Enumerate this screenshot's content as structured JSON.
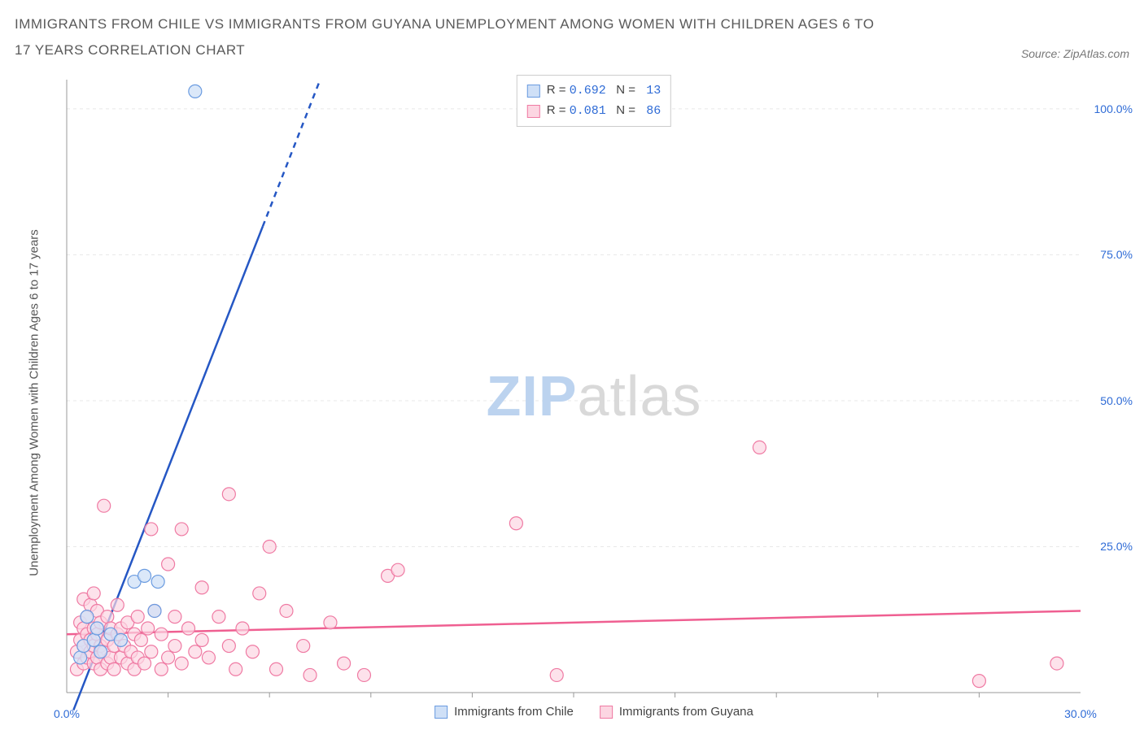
{
  "title": "IMMIGRANTS FROM CHILE VS IMMIGRANTS FROM GUYANA UNEMPLOYMENT AMONG WOMEN WITH CHILDREN AGES 6 TO 17 YEARS CORRELATION CHART",
  "source_label": "Source: ZipAtlas.com",
  "y_axis_label": "Unemployment Among Women with Children Ages 6 to 17 years",
  "watermark": {
    "left": "ZIP",
    "right": "atlas"
  },
  "chart": {
    "type": "scatter",
    "background_color": "#ffffff",
    "grid_color": "#e8e8e8",
    "axis_line_color": "#999999",
    "xlim": [
      0,
      30
    ],
    "ylim": [
      0,
      105
    ],
    "x_tick_color": "#2e6bd6",
    "y_tick_color": "#2e6bd6",
    "x_ticks": [
      {
        "v": 0,
        "label": "0.0%"
      },
      {
        "v": 30,
        "label": "30.0%"
      }
    ],
    "x_minor_ticks": [
      3,
      6,
      9,
      12,
      15,
      18,
      21,
      24,
      27
    ],
    "y_ticks": [
      {
        "v": 25,
        "label": "25.0%"
      },
      {
        "v": 50,
        "label": "50.0%"
      },
      {
        "v": 75,
        "label": "75.0%"
      },
      {
        "v": 100,
        "label": "100.0%"
      }
    ],
    "series": [
      {
        "id": "chile",
        "name": "Immigrants from Chile",
        "marker_fill": "#cfe0f7",
        "marker_stroke": "#6a9be0",
        "marker_opacity": 0.75,
        "marker_radius": 8,
        "line_color": "#2557c4",
        "line_width": 2.5,
        "line_dash_after_x": 5.8,
        "trend": {
          "x1": 0.2,
          "y1": -3,
          "x2": 7.5,
          "y2": 105
        },
        "R": "0.692",
        "N": "13",
        "points": [
          {
            "x": 0.4,
            "y": 6
          },
          {
            "x": 0.5,
            "y": 8
          },
          {
            "x": 0.6,
            "y": 13
          },
          {
            "x": 0.8,
            "y": 9
          },
          {
            "x": 0.9,
            "y": 11
          },
          {
            "x": 1.0,
            "y": 7
          },
          {
            "x": 1.3,
            "y": 10
          },
          {
            "x": 1.6,
            "y": 9
          },
          {
            "x": 2.0,
            "y": 19
          },
          {
            "x": 2.3,
            "y": 20
          },
          {
            "x": 2.6,
            "y": 14
          },
          {
            "x": 2.7,
            "y": 19
          },
          {
            "x": 3.8,
            "y": 103
          }
        ]
      },
      {
        "id": "guyana",
        "name": "Immigrants from Guyana",
        "marker_fill": "#fcd6e2",
        "marker_stroke": "#ef7aa3",
        "marker_opacity": 0.7,
        "marker_radius": 8,
        "line_color": "#ef5f91",
        "line_width": 2.5,
        "trend": {
          "x1": 0,
          "y1": 10,
          "x2": 30,
          "y2": 14
        },
        "R": "0.081",
        "N": "86",
        "points": [
          {
            "x": 0.3,
            "y": 4
          },
          {
            "x": 0.3,
            "y": 7
          },
          {
            "x": 0.4,
            "y": 9
          },
          {
            "x": 0.4,
            "y": 12
          },
          {
            "x": 0.5,
            "y": 5
          },
          {
            "x": 0.5,
            "y": 8
          },
          {
            "x": 0.5,
            "y": 11
          },
          {
            "x": 0.5,
            "y": 16
          },
          {
            "x": 0.6,
            "y": 6
          },
          {
            "x": 0.6,
            "y": 10
          },
          {
            "x": 0.6,
            "y": 13
          },
          {
            "x": 0.7,
            "y": 7
          },
          {
            "x": 0.7,
            "y": 9
          },
          {
            "x": 0.7,
            "y": 15
          },
          {
            "x": 0.8,
            "y": 5
          },
          {
            "x": 0.8,
            "y": 8
          },
          {
            "x": 0.8,
            "y": 11
          },
          {
            "x": 0.8,
            "y": 17
          },
          {
            "x": 0.9,
            "y": 6
          },
          {
            "x": 0.9,
            "y": 10
          },
          {
            "x": 0.9,
            "y": 14
          },
          {
            "x": 1.0,
            "y": 4
          },
          {
            "x": 1.0,
            "y": 8
          },
          {
            "x": 1.0,
            "y": 12
          },
          {
            "x": 1.1,
            "y": 7
          },
          {
            "x": 1.1,
            "y": 32
          },
          {
            "x": 1.2,
            "y": 5
          },
          {
            "x": 1.2,
            "y": 9
          },
          {
            "x": 1.2,
            "y": 13
          },
          {
            "x": 1.3,
            "y": 6
          },
          {
            "x": 1.3,
            "y": 11
          },
          {
            "x": 1.4,
            "y": 4
          },
          {
            "x": 1.4,
            "y": 8
          },
          {
            "x": 1.5,
            "y": 10
          },
          {
            "x": 1.5,
            "y": 15
          },
          {
            "x": 1.6,
            "y": 6
          },
          {
            "x": 1.6,
            "y": 11
          },
          {
            "x": 1.7,
            "y": 8
          },
          {
            "x": 1.8,
            "y": 5
          },
          {
            "x": 1.8,
            "y": 12
          },
          {
            "x": 1.9,
            "y": 7
          },
          {
            "x": 2.0,
            "y": 4
          },
          {
            "x": 2.0,
            "y": 10
          },
          {
            "x": 2.1,
            "y": 6
          },
          {
            "x": 2.1,
            "y": 13
          },
          {
            "x": 2.2,
            "y": 9
          },
          {
            "x": 2.3,
            "y": 5
          },
          {
            "x": 2.4,
            "y": 11
          },
          {
            "x": 2.5,
            "y": 7
          },
          {
            "x": 2.5,
            "y": 28
          },
          {
            "x": 2.6,
            "y": 14
          },
          {
            "x": 2.8,
            "y": 4
          },
          {
            "x": 2.8,
            "y": 10
          },
          {
            "x": 3.0,
            "y": 6
          },
          {
            "x": 3.0,
            "y": 22
          },
          {
            "x": 3.2,
            "y": 8
          },
          {
            "x": 3.2,
            "y": 13
          },
          {
            "x": 3.4,
            "y": 5
          },
          {
            "x": 3.4,
            "y": 28
          },
          {
            "x": 3.6,
            "y": 11
          },
          {
            "x": 3.8,
            "y": 7
          },
          {
            "x": 4.0,
            "y": 9
          },
          {
            "x": 4.0,
            "y": 18
          },
          {
            "x": 4.2,
            "y": 6
          },
          {
            "x": 4.5,
            "y": 13
          },
          {
            "x": 4.8,
            "y": 34
          },
          {
            "x": 4.8,
            "y": 8
          },
          {
            "x": 5.0,
            "y": 4
          },
          {
            "x": 5.2,
            "y": 11
          },
          {
            "x": 5.5,
            "y": 7
          },
          {
            "x": 5.7,
            "y": 17
          },
          {
            "x": 6.0,
            "y": 25
          },
          {
            "x": 6.2,
            "y": 4
          },
          {
            "x": 6.5,
            "y": 14
          },
          {
            "x": 7.0,
            "y": 8
          },
          {
            "x": 7.2,
            "y": 3
          },
          {
            "x": 7.8,
            "y": 12
          },
          {
            "x": 8.2,
            "y": 5
          },
          {
            "x": 8.8,
            "y": 3
          },
          {
            "x": 9.5,
            "y": 20
          },
          {
            "x": 9.8,
            "y": 21
          },
          {
            "x": 13.3,
            "y": 29
          },
          {
            "x": 14.5,
            "y": 3
          },
          {
            "x": 20.5,
            "y": 42
          },
          {
            "x": 27.0,
            "y": 2
          },
          {
            "x": 29.3,
            "y": 5
          }
        ]
      }
    ]
  },
  "legend_corr": {
    "r_label": "R =",
    "n_label": "N ="
  },
  "legend_bottom": [
    {
      "series": "chile"
    },
    {
      "series": "guyana"
    }
  ]
}
